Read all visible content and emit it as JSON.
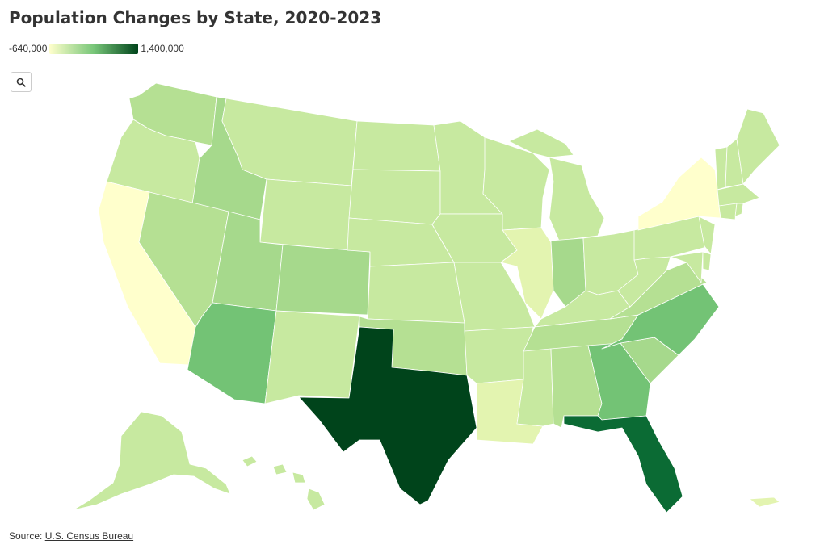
{
  "title": "Population Changes by State, 2020-2023",
  "legend": {
    "min_label": "-640,000",
    "max_label": "1,400,000",
    "min_value": -640000,
    "max_value": 1400000,
    "color_low": "#ffffcc",
    "color_mid": "#78c679",
    "color_high": "#00441b"
  },
  "zoom_button": {
    "icon": "search-icon"
  },
  "source": {
    "prefix": "Source: ",
    "link_text": "U.S. Census Bureau"
  },
  "colors": {
    "tier_low": "#ffffcc",
    "tier_1": "#e3f4b0",
    "tier_2": "#c7e9a0",
    "tier_3": "#b5e093",
    "tier_4": "#a6d98c",
    "tier_5": "#73c375",
    "tier_6": "#0b6b34",
    "tier_max": "#00441b"
  }
}
